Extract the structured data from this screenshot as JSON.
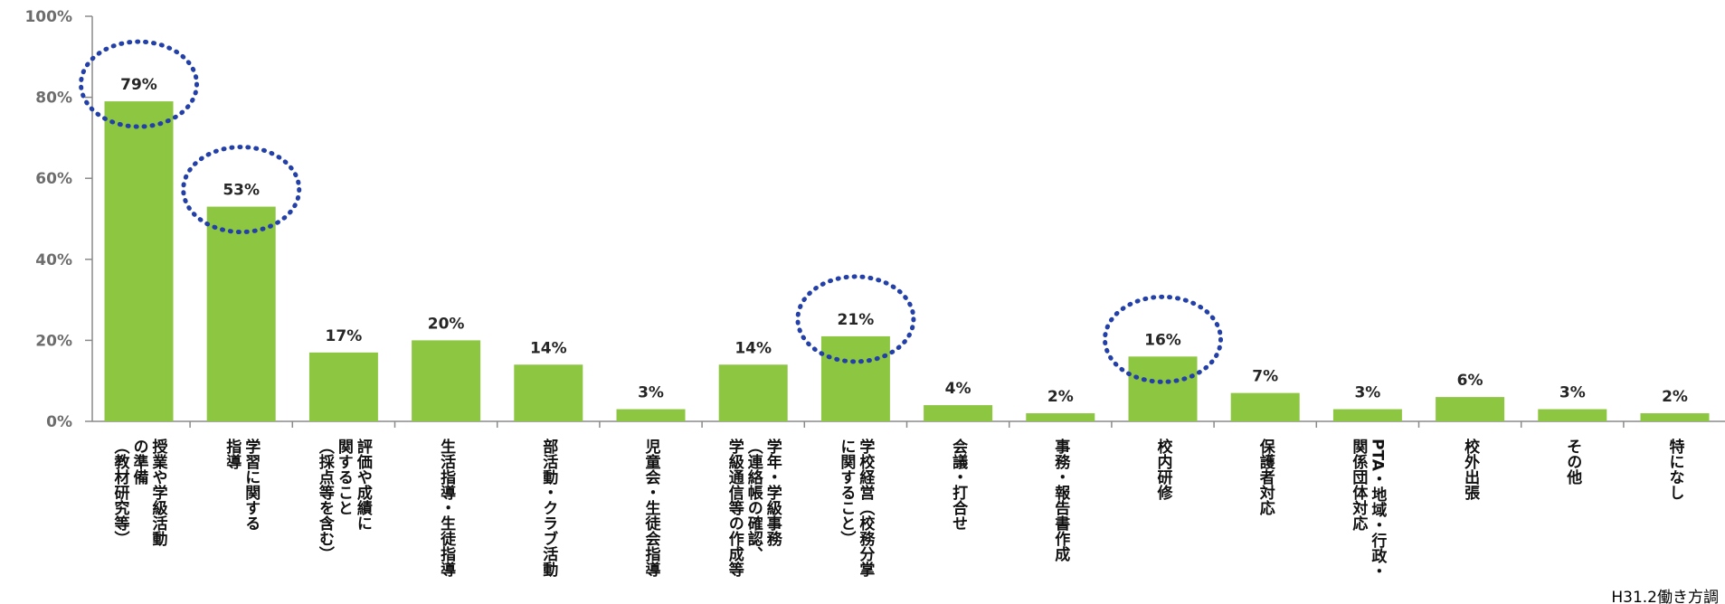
{
  "chart_data": {
    "type": "bar",
    "categories": [
      "授業や学級活動の準備（教材研究等）",
      "学習に関する指導",
      "評価や成績に関すること（採点等を含む）",
      "生活指導・生徒指導",
      "部活動・クラブ活動",
      "児童会・生徒会指導",
      "学年・学級事務（連絡帳の確認、学級通信等の作成等",
      "学校経営（校務分掌に関すること）",
      "会議・打合せ",
      "事務・報告書作成",
      "校内研修",
      "保護者対応",
      "PTA・地域・行政・関係団体対応",
      "校外出張",
      "その他",
      "特になし"
    ],
    "category_lines": [
      [
        "授業や学級活動",
        "の準備",
        "（教材研究等）"
      ],
      [
        "学習に関する",
        "指導"
      ],
      [
        "評価や成績に",
        "関すること",
        "（採点等を含む）"
      ],
      [
        "生活指導・生徒指導"
      ],
      [
        "部活動・クラブ活動"
      ],
      [
        "児童会・生徒会指導"
      ],
      [
        "学年・学級事務",
        "（連絡帳の確認、",
        "学級通信等の作成等"
      ],
      [
        "学校経営（校務分掌",
        "に関すること）"
      ],
      [
        "会議・打合せ"
      ],
      [
        "事務・報告書作成"
      ],
      [
        "校内研修"
      ],
      [
        "保護者対応"
      ],
      [
        "PTA・地域・行政・",
        "関係団体対応"
      ],
      [
        "校外出張"
      ],
      [
        "その他"
      ],
      [
        "特になし"
      ]
    ],
    "values": [
      79,
      53,
      17,
      20,
      14,
      3,
      14,
      21,
      4,
      2,
      16,
      7,
      3,
      6,
      3,
      2
    ],
    "data_labels": [
      "79%",
      "53%",
      "17%",
      "20%",
      "14%",
      "3%",
      "14%",
      "21%",
      "4%",
      "2%",
      "16%",
      "7%",
      "3%",
      "6%",
      "3%",
      "2%"
    ],
    "highlighted_categories": [
      0,
      1,
      7,
      10
    ],
    "ylim": [
      0,
      100
    ],
    "yticks": [
      0,
      20,
      40,
      60,
      80,
      100
    ],
    "ytick_labels": [
      "0%",
      "20%",
      "40%",
      "60%",
      "80%",
      "100%"
    ],
    "title": "",
    "xlabel": "",
    "ylabel": "",
    "grid": false,
    "bar_color": "#8dc641",
    "highlight_color": "#2340a8",
    "axis_color": "#8a8a8a"
  },
  "source_note": "H31.2働き方調"
}
